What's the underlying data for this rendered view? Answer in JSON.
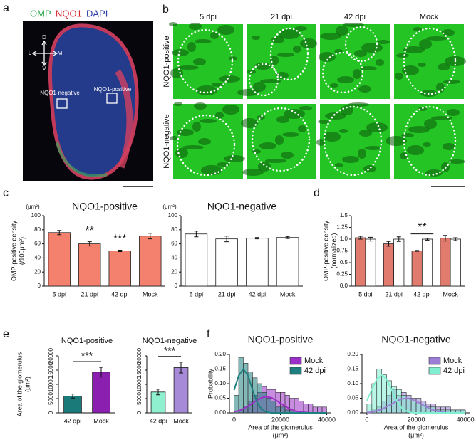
{
  "panel_labels": [
    "a",
    "b",
    "c",
    "d",
    "e",
    "f"
  ],
  "panel_a": {
    "stains": [
      "OMP",
      "NQO1",
      "DAPI"
    ],
    "orientation": [
      "D",
      "V",
      "L",
      "M"
    ],
    "regions": [
      "NQO1-negative",
      "NQO1-positive"
    ]
  },
  "panel_b": {
    "columns": [
      "5 dpi",
      "21 dpi",
      "42 dpi",
      "Mock"
    ],
    "rows": [
      "NQO1-positive",
      "NQO1-negative"
    ]
  },
  "chart_data": [
    {
      "type": "bar",
      "title": "NQO1-positive",
      "unit": "(μm²)",
      "ylabel": [
        "OMP-positive density",
        "(/100μm²)"
      ],
      "categories": [
        "5 dpi",
        "21 dpi",
        "42 dpi",
        "Mock"
      ],
      "values": [
        76,
        60,
        50,
        71
      ],
      "errors": [
        3,
        3,
        1,
        4
      ],
      "color": "#f4806e",
      "significance": [
        null,
        "**",
        "***",
        null
      ],
      "ylim": [
        0,
        100
      ],
      "yticks": [
        0,
        20,
        40,
        60,
        80,
        100
      ]
    },
    {
      "type": "bar",
      "title": "NQO1-negative",
      "unit": "(μm²)",
      "categories": [
        "5 dpi",
        "21 dpi",
        "42 dpi",
        "Mock"
      ],
      "values": [
        74,
        67,
        68,
        69
      ],
      "errors": [
        4,
        4,
        1,
        1.5
      ],
      "color": "#ffffff",
      "ylim": [
        0,
        100
      ],
      "yticks": [
        0,
        20,
        40,
        60,
        80,
        100
      ]
    },
    {
      "type": "bar",
      "ylabel": [
        "OMP-positive density",
        "(normalized)"
      ],
      "categories": [
        "5 dpi",
        "21 dpi",
        "42 dpi",
        "Mock"
      ],
      "series": [
        {
          "color": "#e07b6e",
          "values": [
            1.03,
            0.9,
            0.75,
            1.02
          ],
          "errors": [
            0.03,
            0.05,
            0.01,
            0.06
          ]
        },
        {
          "color": "#ffffff",
          "values": [
            1.0,
            1.0,
            1.0,
            1.0
          ],
          "errors": [
            0.04,
            0.05,
            0.02,
            0.03
          ]
        }
      ],
      "significance": [
        null,
        null,
        "**",
        null
      ],
      "ylim": [
        0,
        1.5
      ],
      "yticks": [
        {
          "value": 0,
          "label": "0.0"
        },
        0.25,
        0.5,
        0.75,
        {
          "value": 1,
          "label": "1.0"
        },
        1.25,
        1.5
      ]
    },
    {
      "type": "bar",
      "title": "NQO1-positive",
      "ylabel": [
        "Area of the glomerulus",
        "(μm²)"
      ],
      "categories": [
        "42 dpi",
        "Mock"
      ],
      "values": [
        5900,
        14300
      ],
      "errors": [
        700,
        1700
      ],
      "colors": [
        "#1a7a7a",
        "#8a1fb0"
      ],
      "bracket": "***",
      "ylim": [
        0,
        20000
      ],
      "yticks": [
        0,
        5000,
        10000,
        15000,
        20000
      ]
    },
    {
      "type": "bar",
      "title": "NQO1-negative",
      "categories": [
        "42 dpi",
        "Mock"
      ],
      "values": [
        7300,
        15900
      ],
      "errors": [
        1000,
        1900
      ],
      "colors": [
        "#8ff0d0",
        "#a68ad8"
      ],
      "bracket": "***",
      "ylim": [
        0,
        20000
      ],
      "yticks": [
        0,
        5000,
        10000,
        15000,
        20000
      ]
    },
    {
      "type": "histogram",
      "title": "NQO1-positive",
      "xlabel": [
        "Area of the glomerulus",
        "(μm²)"
      ],
      "ylabel": "Probability",
      "bins": [
        0,
        2000,
        4000,
        6000,
        8000,
        10000,
        12000,
        14000,
        16000,
        18000,
        20000,
        22000,
        24000,
        26000,
        28000,
        30000,
        32000,
        34000,
        36000,
        38000,
        40000
      ],
      "curve_x": [
        0,
        2000,
        4000,
        6000,
        8000,
        10000,
        12000,
        14000,
        16000,
        18000,
        20000,
        22000,
        24000,
        26000,
        28000,
        30000,
        32000,
        34000,
        36000,
        38000,
        40000
      ],
      "series": [
        {
          "name": "Mock",
          "color": "#9b30c8",
          "values": [
            0,
            0.01,
            0.02,
            0.04,
            0.06,
            0.07,
            0.09,
            0.08,
            0.08,
            0.07,
            0.07,
            0.06,
            0.05,
            0.05,
            0.04,
            0.03,
            0.03,
            0.02,
            0.02,
            0.02
          ],
          "curve": [
            0.004,
            0.007,
            0.014,
            0.023,
            0.033,
            0.044,
            0.052,
            0.055,
            0.052,
            0.044,
            0.033,
            0.023,
            0.014,
            0.007,
            0.004,
            0.002,
            0.001,
            0,
            0,
            0,
            0
          ]
        },
        {
          "name": "42 dpi",
          "color": "#1f7f7f",
          "values": [
            0.06,
            0.19,
            0.17,
            0.14,
            0.12,
            0.1,
            0.07,
            0.05,
            0.04,
            0.02,
            0.02,
            0.01,
            0.01,
            0,
            0,
            0,
            0,
            0,
            0,
            0
          ],
          "curve": [
            0.078,
            0.128,
            0.15,
            0.128,
            0.078,
            0.035,
            0.011,
            0.003,
            0,
            0,
            0,
            0,
            0,
            0,
            0,
            0,
            0,
            0,
            0,
            0,
            0
          ]
        }
      ],
      "legend": "upper right",
      "xlim": [
        -2000,
        42000
      ],
      "xticks": [
        0,
        20000,
        40000
      ],
      "ylim": [
        0,
        0.2
      ],
      "yticks": [
        {
          "value": 0,
          "label": "0.00"
        },
        {
          "value": 0.05,
          "label": "0.05"
        },
        {
          "value": 0.1,
          "label": "0.10"
        },
        {
          "value": 0.15,
          "label": "0.15"
        },
        {
          "value": 0.2,
          "label": "0.20"
        }
      ]
    },
    {
      "type": "histogram",
      "title": "NQO1-negative",
      "xlabel": [
        "Area of the glomerulus",
        "(μm²)"
      ],
      "bins": [
        0,
        2000,
        4000,
        6000,
        8000,
        10000,
        12000,
        14000,
        16000,
        18000,
        20000,
        22000,
        24000,
        26000,
        28000,
        30000,
        32000,
        34000,
        36000,
        38000,
        40000
      ],
      "curve_x": [
        0,
        2000,
        4000,
        6000,
        8000,
        10000,
        12000,
        14000,
        16000,
        18000,
        20000,
        22000,
        24000,
        26000,
        28000,
        30000,
        32000,
        34000,
        36000,
        38000,
        40000
      ],
      "series": [
        {
          "name": "Mock",
          "color": "#9b7fd6",
          "values": [
            0,
            0.01,
            0.02,
            0.04,
            0.06,
            0.08,
            0.06,
            0.07,
            0.06,
            0.05,
            0.05,
            0.04,
            0.03,
            0.03,
            0.02,
            0.02,
            0.02,
            0.01,
            0.01,
            0.01
          ],
          "curve": [
            0.001,
            0.003,
            0.007,
            0.012,
            0.021,
            0.03,
            0.04,
            0.047,
            0.05,
            0.047,
            0.04,
            0.03,
            0.021,
            0.012,
            0.007,
            0.003,
            0.001,
            0,
            0,
            0,
            0
          ]
        },
        {
          "name": "42 dpi",
          "color": "#7fefd0",
          "values": [
            0.03,
            0.1,
            0.15,
            0.13,
            0.11,
            0.09,
            0.08,
            0.06,
            0.05,
            0.04,
            0.03,
            0.03,
            0.02,
            0.02,
            0.01,
            0.01,
            0.01,
            0.01,
            0.01,
            0.01
          ],
          "curve": [
            0.042,
            0.079,
            0.115,
            0.13,
            0.115,
            0.079,
            0.042,
            0.018,
            0.006,
            0.001,
            0,
            0,
            0,
            0,
            0,
            0,
            0,
            0,
            0,
            0,
            0
          ]
        }
      ],
      "legend": "upper right",
      "xlim": [
        -2000,
        42000
      ],
      "xticks": [
        0,
        20000,
        40000
      ],
      "ylim": [
        0,
        0.2
      ],
      "yticks": [
        {
          "value": 0,
          "label": "0.00"
        },
        {
          "value": 0.05,
          "label": "0.05"
        },
        {
          "value": 0.1,
          "label": "0.10"
        },
        {
          "value": 0.15,
          "label": "0.15"
        },
        {
          "value": 0.2,
          "label": "0.20"
        }
      ]
    }
  ]
}
